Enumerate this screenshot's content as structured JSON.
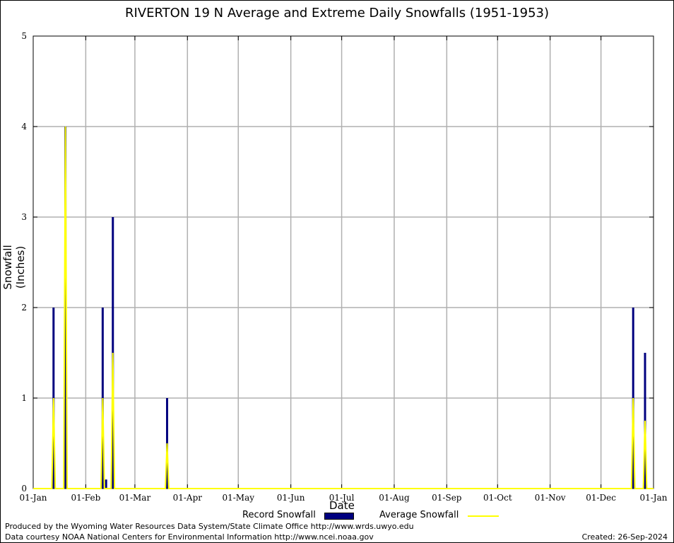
{
  "chart_data": {
    "type": "bar",
    "title": "RIVERTON 19 N Average and Extreme Daily Snowfalls (1951-1953)",
    "xlabel": "Date",
    "ylabel": "Snowfall (Inches)",
    "ylim": [
      0,
      5
    ],
    "xlim_days": [
      0,
      366
    ],
    "yticks": [
      "0",
      "1",
      "2",
      "3",
      "4",
      "5"
    ],
    "xticks": [
      {
        "label": "01-Jan",
        "day": 0
      },
      {
        "label": "01-Feb",
        "day": 31
      },
      {
        "label": "01-Mar",
        "day": 60
      },
      {
        "label": "01-Apr",
        "day": 91
      },
      {
        "label": "01-May",
        "day": 121
      },
      {
        "label": "01-Jun",
        "day": 152
      },
      {
        "label": "01-Jul",
        "day": 182
      },
      {
        "label": "01-Aug",
        "day": 213
      },
      {
        "label": "01-Sep",
        "day": 244
      },
      {
        "label": "01-Oct",
        "day": 274
      },
      {
        "label": "01-Nov",
        "day": 305
      },
      {
        "label": "01-Dec",
        "day": 335
      },
      {
        "label": "01-Jan",
        "day": 366
      }
    ],
    "grid": true,
    "series": [
      {
        "name": "Record Snowfall",
        "color": "#00007f",
        "points": [
          {
            "day": 12,
            "value": 2.0
          },
          {
            "day": 19,
            "value": 4.0
          },
          {
            "day": 41,
            "value": 2.0
          },
          {
            "day": 43,
            "value": 0.1
          },
          {
            "day": 47,
            "value": 3.0
          },
          {
            "day": 79,
            "value": 1.0
          },
          {
            "day": 354,
            "value": 2.0
          },
          {
            "day": 361,
            "value": 1.5
          }
        ]
      },
      {
        "name": "Average Snowfall",
        "color": "#ffff00",
        "points": [
          {
            "day": 11,
            "value": 0.0
          },
          {
            "day": 12,
            "value": 1.0
          },
          {
            "day": 13,
            "value": 0.0
          },
          {
            "day": 18,
            "value": 0.0
          },
          {
            "day": 19,
            "value": 4.0
          },
          {
            "day": 20,
            "value": 0.0
          },
          {
            "day": 40,
            "value": 0.0
          },
          {
            "day": 41,
            "value": 1.0
          },
          {
            "day": 42,
            "value": 0.0
          },
          {
            "day": 46,
            "value": 0.0
          },
          {
            "day": 47,
            "value": 1.5
          },
          {
            "day": 48,
            "value": 0.0
          },
          {
            "day": 78,
            "value": 0.0
          },
          {
            "day": 79,
            "value": 0.5
          },
          {
            "day": 80,
            "value": 0.0
          },
          {
            "day": 353,
            "value": 0.0
          },
          {
            "day": 354,
            "value": 1.0
          },
          {
            "day": 355,
            "value": 0.0
          },
          {
            "day": 360,
            "value": 0.0
          },
          {
            "day": 361,
            "value": 0.75
          },
          {
            "day": 362,
            "value": 0.0
          }
        ]
      }
    ]
  },
  "legend": {
    "record_label": "Record Snowfall",
    "average_label": "Average Snowfall"
  },
  "footer": {
    "credit_line1": "Produced by the Wyoming Water Resources Data System/State Climate Office http://www.wrds.uwyo.edu",
    "credit_line2": "Data courtesy NOAA National Centers for Environmental Information http://www.ncei.noaa.gov",
    "created": "Created:  26-Sep-2024"
  }
}
